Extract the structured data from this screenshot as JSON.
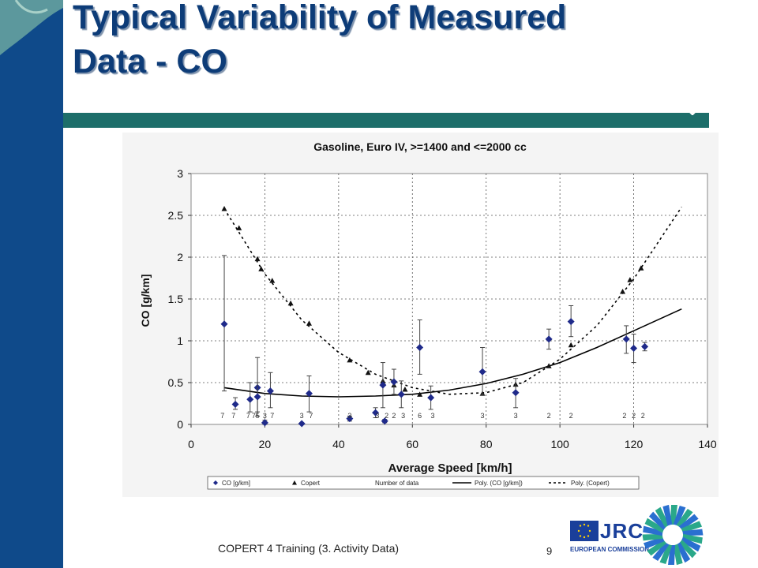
{
  "slide": {
    "title_line1": "Typical Variability of Measured",
    "title_line2": "Data - CO",
    "footer_text": "COPERT 4 Training (3. Activity Data)",
    "page_number": "9",
    "logo": {
      "jrc": "JRC",
      "ec": "EUROPEAN COMMISSION"
    },
    "colors": {
      "band": "#0f4a8a",
      "title": "#0d3c78",
      "rule": "#1d6e6a",
      "logo": "#1a3f9a"
    }
  },
  "chart_data": {
    "type": "scatter",
    "title": "Gasoline, Euro IV, >=1400 and <=2000 cc",
    "xlabel": "Average Speed [km/h]",
    "ylabel": "CO [g/km]",
    "xlim": [
      0,
      140
    ],
    "ylim": [
      0,
      3
    ],
    "xticks": [
      0,
      20,
      40,
      60,
      80,
      100,
      120,
      140
    ],
    "yticks": [
      0,
      0.5,
      1,
      1.5,
      2,
      2.5,
      3
    ],
    "grid": true,
    "legend_position": "bottom",
    "series": [
      {
        "name": "CO [g/km]",
        "marker": "diamond",
        "color": "#1f2a8a",
        "points": [
          {
            "x": 9,
            "y": 1.2,
            "lo": 0.4,
            "hi": 2.02
          },
          {
            "x": 12,
            "y": 0.24,
            "lo": 0.18,
            "hi": 0.32
          },
          {
            "x": 16,
            "y": 0.3,
            "lo": 0.15,
            "hi": 0.5
          },
          {
            "x": 18,
            "y": 0.44,
            "lo": 0.1,
            "hi": 0.8
          },
          {
            "x": 18,
            "y": 0.33,
            "lo": 0.15,
            "hi": 0.5
          },
          {
            "x": 20,
            "y": 0.02,
            "lo": 0.0,
            "hi": 0.05
          },
          {
            "x": 21.5,
            "y": 0.4,
            "lo": 0.2,
            "hi": 0.62
          },
          {
            "x": 30,
            "y": 0.01,
            "lo": 0.0,
            "hi": 0.02
          },
          {
            "x": 32,
            "y": 0.37,
            "lo": 0.15,
            "hi": 0.58
          },
          {
            "x": 43,
            "y": 0.07,
            "lo": 0.04,
            "hi": 0.1
          },
          {
            "x": 50,
            "y": 0.14,
            "lo": 0.08,
            "hi": 0.2
          },
          {
            "x": 52,
            "y": 0.47,
            "lo": 0.2,
            "hi": 0.74
          },
          {
            "x": 52.5,
            "y": 0.04,
            "lo": 0.02,
            "hi": 0.06
          },
          {
            "x": 55,
            "y": 0.51,
            "lo": 0.36,
            "hi": 0.66
          },
          {
            "x": 57,
            "y": 0.36,
            "lo": 0.2,
            "hi": 0.52
          },
          {
            "x": 62,
            "y": 0.92,
            "lo": 0.6,
            "hi": 1.25
          },
          {
            "x": 65,
            "y": 0.32,
            "lo": 0.18,
            "hi": 0.46
          },
          {
            "x": 79,
            "y": 0.63,
            "lo": 0.35,
            "hi": 0.92
          },
          {
            "x": 88,
            "y": 0.38,
            "lo": 0.2,
            "hi": 0.55
          },
          {
            "x": 97,
            "y": 1.02,
            "lo": 0.9,
            "hi": 1.14
          },
          {
            "x": 103,
            "y": 1.23,
            "lo": 1.05,
            "hi": 1.42
          },
          {
            "x": 118,
            "y": 1.02,
            "lo": 0.85,
            "hi": 1.18
          },
          {
            "x": 120,
            "y": 0.91,
            "lo": 0.74,
            "hi": 1.08
          },
          {
            "x": 123,
            "y": 0.93,
            "lo": 0.88,
            "hi": 0.98
          }
        ]
      },
      {
        "name": "Copert",
        "marker": "triangle",
        "color": "#111111",
        "points": [
          {
            "x": 9,
            "y": 2.58
          },
          {
            "x": 13,
            "y": 2.35
          },
          {
            "x": 18,
            "y": 1.98
          },
          {
            "x": 19,
            "y": 1.86
          },
          {
            "x": 22,
            "y": 1.72
          },
          {
            "x": 27,
            "y": 1.45
          },
          {
            "x": 32,
            "y": 1.21
          },
          {
            "x": 43,
            "y": 0.77
          },
          {
            "x": 48,
            "y": 0.62
          },
          {
            "x": 52,
            "y": 0.52
          },
          {
            "x": 55,
            "y": 0.47
          },
          {
            "x": 58,
            "y": 0.42
          },
          {
            "x": 62,
            "y": 0.36
          },
          {
            "x": 79,
            "y": 0.37
          },
          {
            "x": 88,
            "y": 0.48
          },
          {
            "x": 97,
            "y": 0.7
          },
          {
            "x": 103,
            "y": 0.95
          },
          {
            "x": 117,
            "y": 1.59
          },
          {
            "x": 119,
            "y": 1.73
          },
          {
            "x": 122,
            "y": 1.87
          }
        ]
      },
      {
        "name": "Number of data",
        "type": "labels",
        "points": [
          {
            "x": 8.5,
            "label": "7"
          },
          {
            "x": 11.5,
            "label": "7"
          },
          {
            "x": 15.5,
            "label": "7"
          },
          {
            "x": 17,
            "label": "7"
          },
          {
            "x": 18,
            "label": "5"
          },
          {
            "x": 20,
            "label": "3"
          },
          {
            "x": 22,
            "label": "7"
          },
          {
            "x": 30,
            "label": "3"
          },
          {
            "x": 32.5,
            "label": "7"
          },
          {
            "x": 43,
            "label": "3"
          },
          {
            "x": 50.5,
            "label": "3"
          },
          {
            "x": 53,
            "label": "2"
          },
          {
            "x": 55,
            "label": "2"
          },
          {
            "x": 57.5,
            "label": "3"
          },
          {
            "x": 62,
            "label": "6"
          },
          {
            "x": 65.5,
            "label": "3"
          },
          {
            "x": 79,
            "label": "3"
          },
          {
            "x": 88,
            "label": "3"
          },
          {
            "x": 97,
            "label": "2"
          },
          {
            "x": 103,
            "label": "2"
          },
          {
            "x": 117.5,
            "label": "2"
          },
          {
            "x": 120,
            "label": "2"
          },
          {
            "x": 122.5,
            "label": "2"
          }
        ]
      },
      {
        "name": "Poly. (CO [g/km])",
        "type": "curve",
        "style": "solid",
        "x": [
          9,
          20,
          30,
          40,
          50,
          60,
          70,
          80,
          90,
          100,
          110,
          120,
          133
        ],
        "y": [
          0.44,
          0.37,
          0.34,
          0.33,
          0.34,
          0.36,
          0.41,
          0.49,
          0.6,
          0.74,
          0.92,
          1.12,
          1.38
        ]
      },
      {
        "name": "Poly. (Copert)",
        "type": "curve",
        "style": "dotted",
        "x": [
          9,
          20,
          30,
          40,
          50,
          60,
          70,
          80,
          90,
          100,
          110,
          120,
          133
        ],
        "y": [
          2.58,
          1.8,
          1.25,
          0.86,
          0.6,
          0.44,
          0.36,
          0.38,
          0.5,
          0.78,
          1.18,
          1.74,
          2.6
        ]
      }
    ]
  }
}
